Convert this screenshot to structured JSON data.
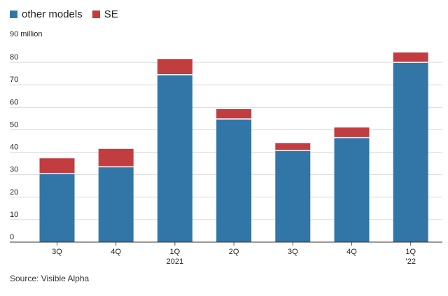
{
  "chart_data": {
    "type": "bar",
    "stacked": true,
    "ylabel": "90 million",
    "ylim": [
      0,
      90
    ],
    "yticks": [
      0,
      10,
      20,
      30,
      40,
      50,
      60,
      70,
      80
    ],
    "grid": true,
    "legend_position": "top-left",
    "categories": [
      {
        "label": "3Q",
        "sub": ""
      },
      {
        "label": "4Q",
        "sub": ""
      },
      {
        "label": "1Q",
        "sub": "2021"
      },
      {
        "label": "2Q",
        "sub": ""
      },
      {
        "label": "3Q",
        "sub": ""
      },
      {
        "label": "4Q",
        "sub": ""
      },
      {
        "label": "1Q",
        "sub": "’22"
      }
    ],
    "series": [
      {
        "name": "other models",
        "color": "#3276a8",
        "values": [
          30.5,
          33.5,
          74.5,
          54.8,
          40.8,
          46.5,
          80
        ]
      },
      {
        "name": "SE",
        "color": "#c13d3f",
        "values": [
          6.8,
          8,
          7,
          4.4,
          3.3,
          4.5,
          4.4
        ]
      }
    ],
    "source": "Source: Visible Alpha"
  }
}
